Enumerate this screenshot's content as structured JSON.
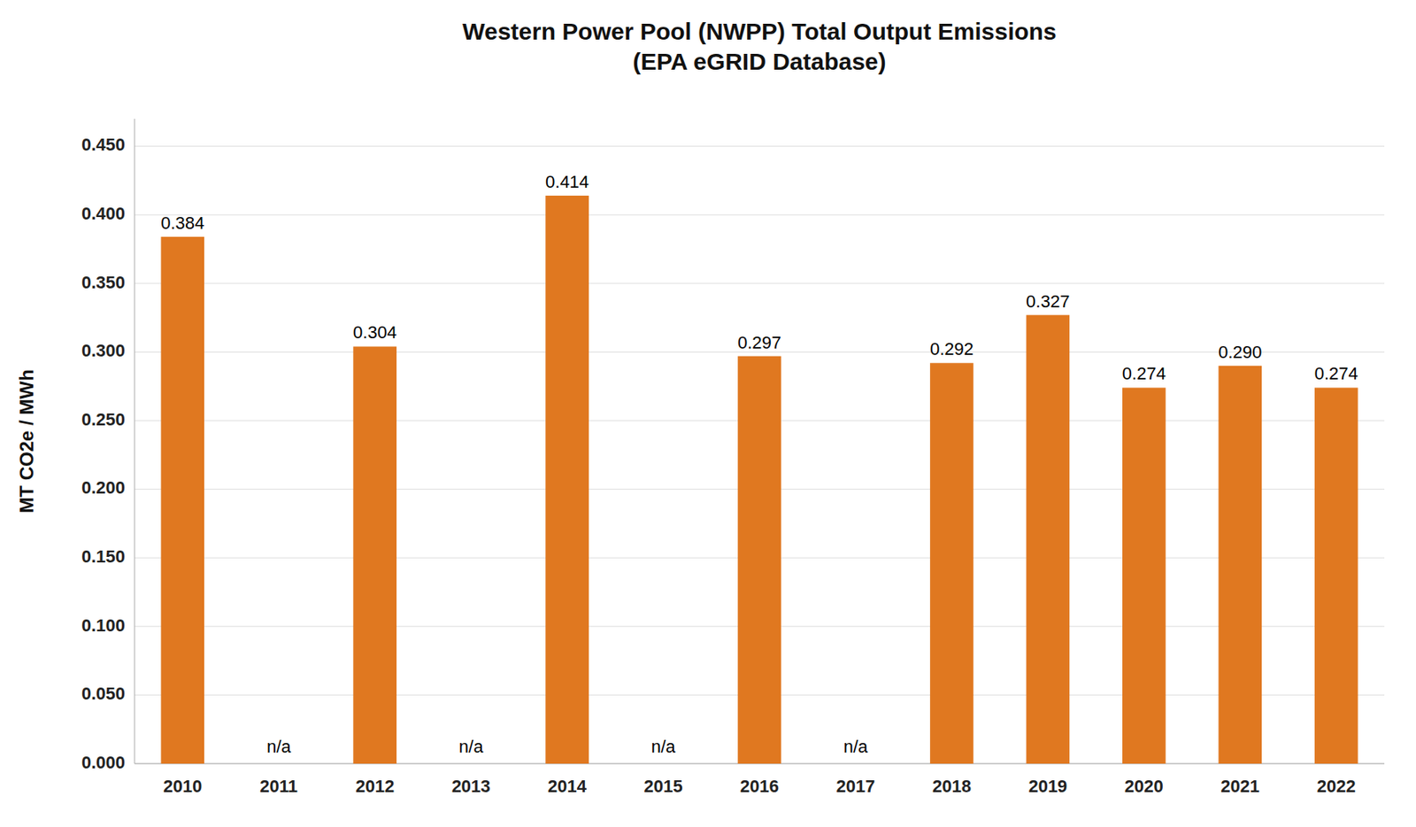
{
  "chart_data": {
    "type": "bar",
    "title": "Western Power Pool (NWPP) Total Output Emissions\n(EPA eGRID Database)",
    "y_label": "MT CO2e / MWh",
    "categories": [
      "2010",
      "2011",
      "2012",
      "2013",
      "2014",
      "2015",
      "2016",
      "2017",
      "2018",
      "2019",
      "2020",
      "2021",
      "2022"
    ],
    "values": [
      0.384,
      null,
      0.304,
      null,
      0.414,
      null,
      0.297,
      null,
      0.292,
      0.327,
      0.274,
      0.29,
      0.274
    ],
    "value_labels": [
      "0.384",
      null,
      "0.304",
      null,
      "0.414",
      null,
      "0.297",
      null,
      "0.292",
      "0.327",
      "0.274",
      "0.290",
      "0.274"
    ],
    "annotations": [
      {
        "x": "2011",
        "text": "n/a"
      },
      {
        "x": "2013",
        "text": "n/a"
      },
      {
        "x": "2015",
        "text": "n/a"
      },
      {
        "x": "2017",
        "text": "n/a"
      }
    ],
    "color": "#E07820",
    "ylim": [
      0.0,
      0.47
    ],
    "yticks": [
      {
        "value": 0.0,
        "label": "0.000"
      },
      {
        "value": 0.05,
        "label": "0.050"
      },
      {
        "value": 0.1,
        "label": "0.100"
      },
      {
        "value": 0.15,
        "label": "0.150"
      },
      {
        "value": 0.2,
        "label": "0.200"
      },
      {
        "value": 0.25,
        "label": "0.250"
      },
      {
        "value": 0.3,
        "label": "0.300"
      },
      {
        "value": 0.35,
        "label": "0.350"
      },
      {
        "value": 0.4,
        "label": "0.400"
      },
      {
        "value": 0.45,
        "label": "0.450"
      }
    ],
    "grid": true,
    "data_labels": true
  }
}
